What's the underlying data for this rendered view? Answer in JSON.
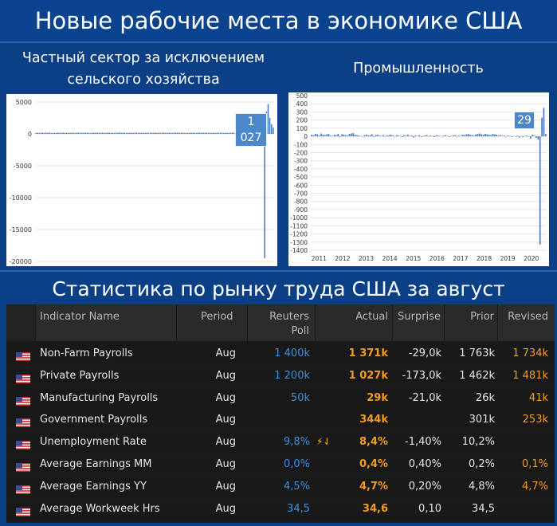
{
  "header": {
    "title": "Новые рабочие места в экономике США",
    "left_subtitle": "Частный сектор за исключением сельского хозяйства",
    "right_subtitle": "Промышленность",
    "table_title": "Статистика по рынку труда США за август"
  },
  "chart_data": [
    {
      "type": "bar",
      "title": "Частный сектор за исключением сельского хозяйства",
      "ylim": [
        -20000,
        5000
      ],
      "yticks": [
        "5000",
        "0",
        "-5000",
        "-10000",
        "-15000",
        "-20000"
      ],
      "series": [
        {
          "values": [
            150,
            180,
            120,
            200,
            160,
            140,
            190,
            170,
            210,
            130,
            160,
            180,
            150,
            200,
            170,
            140,
            190,
            160,
            180,
            150,
            170,
            200,
            160,
            140,
            180,
            190,
            150,
            170,
            160,
            180,
            200,
            150,
            140,
            170,
            190,
            160,
            180,
            150,
            170,
            200,
            130,
            160,
            180,
            190,
            150,
            170,
            140,
            160,
            180,
            200,
            150,
            190,
            170,
            160,
            140,
            180,
            170,
            150,
            190,
            200,
            160,
            180,
            140,
            170,
            150,
            190,
            160,
            180,
            170,
            150,
            200,
            140,
            180,
            160,
            170,
            190,
            150,
            160,
            180,
            170,
            140,
            200,
            150,
            190,
            160,
            170,
            180,
            150,
            160,
            140,
            170,
            190,
            180,
            160,
            150,
            200,
            170,
            160,
            180,
            150,
            190,
            160,
            170,
            140,
            180,
            150,
            170,
            160,
            190,
            180,
            150,
            170,
            160,
            140,
            180,
            200,
            150,
            170,
            160,
            190,
            180,
            150,
            160,
            170,
            140,
            180,
            150,
            190,
            160,
            170,
            180,
            150,
            160,
            -100,
            -19500,
            3500,
            4700,
            2500,
            1500,
            1027
          ]
        }
      ],
      "annotation": "1 027"
    },
    {
      "type": "bar",
      "title": "Промышленность",
      "ylim": [
        -1400,
        500
      ],
      "yticks": [
        "500",
        "400",
        "300",
        "200",
        "100",
        "0",
        "-100",
        "-200",
        "-300",
        "-400",
        "-500",
        "-600",
        "-700",
        "-800",
        "-900",
        "-1000",
        "-1100",
        "-1200",
        "-1300",
        "-1400"
      ],
      "xticks": [
        "2011",
        "2012",
        "2013",
        "2014",
        "2015",
        "2016",
        "2017",
        "2018",
        "2019",
        "2020"
      ],
      "series": [
        {
          "values": [
            20,
            15,
            30,
            25,
            10,
            35,
            20,
            15,
            25,
            30,
            10,
            5,
            20,
            15,
            30,
            -10,
            25,
            20,
            15,
            10,
            30,
            35,
            40,
            20,
            15,
            10,
            5,
            -5,
            15,
            20,
            10,
            15,
            25,
            -10,
            15,
            20,
            10,
            5,
            15,
            -5,
            10,
            15,
            20,
            10,
            -5,
            15,
            10,
            5,
            -10,
            15,
            10,
            20,
            5,
            10,
            -15,
            10,
            5,
            15,
            -10,
            5,
            10,
            15,
            -5,
            10,
            5,
            -10,
            15,
            10,
            5,
            -5,
            10,
            15,
            5,
            -10,
            5,
            10,
            15,
            -5,
            10,
            5,
            20,
            15,
            25,
            30,
            20,
            15,
            10,
            25,
            30,
            35,
            25,
            20,
            30,
            25,
            20,
            15,
            30,
            25,
            20,
            10,
            15,
            5,
            10,
            -5,
            10,
            5,
            -10,
            5,
            -5,
            10,
            -15,
            5,
            -10,
            5,
            10,
            -5,
            -30,
            20,
            10,
            -20,
            -40,
            -1330,
            230,
            350,
            29
          ]
        }
      ],
      "annotation": "29"
    }
  ],
  "table": {
    "headers": {
      "indicator": "Indicator Name",
      "period": "Period",
      "poll_1": "Reuters",
      "poll_2": "Poll",
      "actual": "Actual",
      "surprise": "Surprise",
      "prior": "Prior",
      "revised": "Revised"
    },
    "rows": [
      {
        "name": "Non-Farm Payrolls",
        "period": "Aug",
        "poll": "1 400k",
        "actual": "1 371k",
        "surprise": "-29,0k",
        "prior": "1 763k",
        "revised": "1 734k",
        "flag": ""
      },
      {
        "name": "Private Payrolls",
        "period": "Aug",
        "poll": "1 200k",
        "actual": "1 027k",
        "surprise": "-173,0k",
        "prior": "1 462k",
        "revised": "1 481k",
        "flag": ""
      },
      {
        "name": "Manufacturing Payrolls",
        "period": "Aug",
        "poll": "50k",
        "actual": "29k",
        "surprise": "-21,0k",
        "prior": "26k",
        "revised": "41k",
        "flag": ""
      },
      {
        "name": "Government Payrolls",
        "period": "Aug",
        "poll": "",
        "actual": "344k",
        "surprise": "",
        "prior": "301k",
        "revised": "253k",
        "flag": ""
      },
      {
        "name": "Unemployment Rate",
        "period": "Aug",
        "poll": "9,8%",
        "actual": "8,4%",
        "surprise": "-1,40%",
        "prior": "10,2%",
        "revised": "",
        "flag": "⚡⇃"
      },
      {
        "name": "Average Earnings MM",
        "period": "Aug",
        "poll": "0,0%",
        "actual": "0,4%",
        "surprise": "0,40%",
        "prior": "0,2%",
        "revised": "0,1%",
        "flag": ""
      },
      {
        "name": "Average Earnings YY",
        "period": "Aug",
        "poll": "4,5%",
        "actual": "4,7%",
        "surprise": "0,20%",
        "prior": "4,8%",
        "revised": "4,7%",
        "flag": ""
      },
      {
        "name": "Average Workweek Hrs",
        "period": "Aug",
        "poll": "34,5",
        "actual": "34,6",
        "surprise": "0,10",
        "prior": "34,5",
        "revised": "",
        "flag": ""
      }
    ]
  },
  "colors": {
    "background": "#0b3f86",
    "bar": "#4a78c2",
    "table_bg": "#1a1a1a",
    "poll": "#3b8ddb",
    "actual": "#f39c1f",
    "text": "#e6e6e6"
  },
  "icons": {
    "row_flag": "us-flag-icon",
    "surprise_flag": "lightning-arrow-icon"
  }
}
